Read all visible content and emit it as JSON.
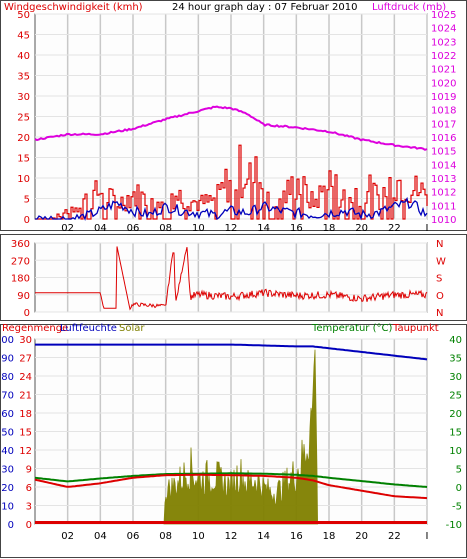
{
  "colors": {
    "wind": "#dd0000",
    "wind_avg": "#0000bb",
    "pressure": "#dd00dd",
    "direction": "#dd0000",
    "humidity": "#0000bb",
    "solar": "#808000",
    "temperature": "#008000",
    "dewpoint": "#dd0000",
    "rain": "#dd0000",
    "grid": "#c8c8c8",
    "plot_bg": "#fdfdfd"
  },
  "chart_data": [
    {
      "type": "line",
      "title": "24 hour graph day : 07 Februar 2010",
      "left_label": "Windgeschwindigkeit (kmh)",
      "right_label": "Luftdruck (mb)",
      "x_ticks": [
        "02",
        "04",
        "06",
        "08",
        "10",
        "12",
        "14",
        "16",
        "18",
        "20",
        "22",
        "I"
      ],
      "y_left_ticks": [
        "0",
        "5",
        "10",
        "15",
        "20",
        "25",
        "30",
        "35",
        "40",
        "45",
        "50"
      ],
      "y_left_range": [
        0,
        50
      ],
      "y_right_ticks": [
        "1010",
        "1011",
        "1012",
        "1013",
        "1014",
        "1015",
        "1016",
        "1017",
        "1018",
        "1019",
        "1020",
        "1021",
        "1022",
        "1023",
        "1024",
        "1025"
      ],
      "y_right_range": [
        1010,
        1025
      ],
      "series": [
        {
          "name": "pressure",
          "axis": "right",
          "x": [
            0,
            2,
            4,
            6,
            8,
            10,
            11,
            12,
            13,
            14,
            16,
            18,
            20,
            22,
            24
          ],
          "values": [
            1015.8,
            1016.2,
            1016.2,
            1016.6,
            1017.3,
            1017.9,
            1018.2,
            1018.1,
            1017.7,
            1016.9,
            1016.7,
            1016.4,
            1015.8,
            1015.4,
            1015.1
          ]
        },
        {
          "name": "wind_avg",
          "axis": "left",
          "x": [
            0,
            1,
            2,
            3,
            4,
            5,
            6,
            7,
            8,
            9,
            10,
            11,
            12,
            13,
            14,
            15,
            16,
            17,
            18,
            19,
            20,
            21,
            22,
            23,
            24
          ],
          "values": [
            0,
            0,
            0,
            0.5,
            2,
            4,
            2,
            1,
            3,
            2,
            1.5,
            1,
            2,
            1.5,
            3,
            2,
            1.5,
            1,
            1.5,
            2,
            1,
            1.5,
            3,
            4,
            1
          ]
        },
        {
          "name": "wind_gust",
          "axis": "left",
          "x": [
            0,
            1,
            2,
            3,
            4,
            5,
            6,
            7,
            8,
            9,
            10,
            11,
            12,
            13,
            14,
            15,
            16,
            17,
            18,
            19,
            20,
            21,
            22,
            23,
            24
          ],
          "values": [
            0,
            0,
            3,
            6,
            9,
            5,
            8,
            6,
            9,
            7,
            5,
            6,
            14,
            17,
            10,
            6,
            12,
            5,
            12,
            6,
            11,
            7,
            13,
            10,
            8
          ]
        }
      ]
    },
    {
      "type": "line",
      "left_label": "",
      "right_labels": [
        "N",
        "W",
        "S",
        "O",
        "N"
      ],
      "y_left_ticks": [
        "0",
        "90",
        "180",
        "270",
        "360"
      ],
      "y_left_range": [
        0,
        360
      ],
      "series": [
        {
          "name": "wind_direction",
          "x": [
            0,
            4,
            4.2,
            5,
            5,
            5.8,
            6,
            8,
            8.5,
            8.6,
            9.3,
            9.5,
            10,
            12,
            14,
            16,
            18,
            20,
            22,
            24
          ],
          "values": [
            100,
            100,
            20,
            20,
            350,
            20,
            40,
            30,
            350,
            40,
            350,
            80,
            90,
            80,
            100,
            85,
            90,
            70,
            90,
            90
          ]
        }
      ]
    },
    {
      "type": "area",
      "left_label": "Regenmenge",
      "left2_label": "Luftfeuchte",
      "solar_label": "Solar",
      "right_label": "Temperatur (°C)",
      "right2_label": "Taupunkt",
      "y_humidity_ticks": [
        "0",
        "10",
        "20",
        "30",
        "40",
        "50",
        "60",
        "70",
        "80",
        "90",
        "100"
      ],
      "y_humidity_range": [
        0,
        100
      ],
      "y_rain_ticks": [
        "0",
        "3",
        "6",
        "9",
        "12",
        "15",
        "18",
        "21",
        "24",
        "27",
        "30"
      ],
      "y_rain_range": [
        0,
        30
      ],
      "y_temp_ticks": [
        "-10",
        "-5",
        "0",
        "5",
        "10",
        "15",
        "20",
        "25",
        "30",
        "35",
        "40"
      ],
      "y_temp_range": [
        -10,
        40
      ],
      "series": [
        {
          "name": "humidity",
          "axis": "humidity",
          "x": [
            0,
            4,
            8,
            12,
            16,
            17,
            18,
            20,
            22,
            24
          ],
          "values": [
            97,
            97,
            97,
            97,
            96,
            96,
            95,
            93,
            91,
            89
          ]
        },
        {
          "name": "temperature",
          "axis": "temp",
          "x": [
            0,
            2,
            4,
            6,
            8,
            10,
            12,
            14,
            16,
            17,
            18,
            20,
            22,
            24
          ],
          "values": [
            2.5,
            1.5,
            2.3,
            3.0,
            3.5,
            3.6,
            3.7,
            3.6,
            3.3,
            3.0,
            2.5,
            1.6,
            0.7,
            0.0
          ]
        },
        {
          "name": "dewpoint",
          "axis": "temp",
          "x": [
            0,
            2,
            4,
            6,
            8,
            10,
            12,
            14,
            16,
            17,
            18,
            20,
            22,
            24
          ],
          "values": [
            2.0,
            0.0,
            1.0,
            2.5,
            3.2,
            3.3,
            3.2,
            3.0,
            2.5,
            1.8,
            0.5,
            -1.0,
            -2.5,
            -3.0
          ]
        },
        {
          "name": "solar",
          "axis": "humidity",
          "x": [
            7.9,
            8.5,
            9,
            9.5,
            10,
            10.5,
            11,
            11.5,
            12,
            12.5,
            13,
            13.5,
            14,
            14.5,
            15,
            15.5,
            16,
            16.5,
            17,
            17.1,
            17.2,
            17.3
          ],
          "values": [
            18,
            22,
            26,
            33,
            25,
            27,
            28,
            24,
            22,
            30,
            23,
            26,
            21,
            18,
            20,
            25,
            30,
            40,
            65,
            90,
            100,
            0
          ]
        },
        {
          "name": "rain",
          "axis": "rain",
          "x": [
            0,
            24
          ],
          "values": [
            0,
            0
          ]
        }
      ]
    }
  ]
}
